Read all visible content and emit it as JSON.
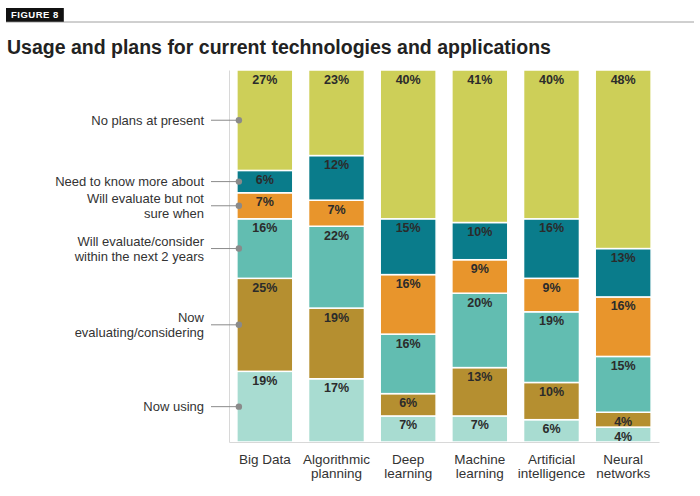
{
  "chart_data": {
    "type": "bar",
    "title": "Usage and plans for current technologies and applications",
    "annotations": [
      "FIGURE 8"
    ],
    "categories": [
      "Big Data",
      "Algorithmic planning",
      "Deep learning",
      "Machine learning",
      "Artificial intelligence",
      "Neural networks"
    ],
    "series": [
      {
        "name": "Now using",
        "color": "#a8dcd1",
        "values": [
          19,
          17,
          7,
          7,
          6,
          4
        ],
        "value_labels": [
          "19%",
          "17%",
          "7%",
          "7%",
          "6%",
          "4%"
        ]
      },
      {
        "name": "Now evaluating/considering",
        "color": "#b58f30",
        "values": [
          25,
          19,
          6,
          13,
          10,
          4
        ],
        "value_labels": [
          "25%",
          "19%",
          "6%",
          "13%",
          "10%",
          "4%"
        ]
      },
      {
        "name": "Will evaluate/consider within the next 2 years",
        "color": "#62bdb1",
        "values": [
          16,
          22,
          16,
          20,
          19,
          15
        ],
        "value_labels": [
          "16%",
          "22%",
          "16%",
          "20%",
          "19%",
          "15%"
        ]
      },
      {
        "name": "Will evaluate but not sure when",
        "color": "#e8952c",
        "values": [
          7,
          7,
          16,
          9,
          9,
          16
        ],
        "value_labels": [
          "7%",
          "7%",
          "16%",
          "9%",
          "9%",
          "16%"
        ]
      },
      {
        "name": "Need to know more about",
        "color": "#0a7c8b",
        "values": [
          6,
          12,
          15,
          10,
          16,
          13
        ],
        "value_labels": [
          "6%",
          "12%",
          "15%",
          "10%",
          "16%",
          "13%"
        ]
      },
      {
        "name": "No plans at present",
        "color": "#cdcf58",
        "values": [
          27,
          23,
          40,
          41,
          40,
          48
        ],
        "value_labels": [
          "27%",
          "23%",
          "40%",
          "41%",
          "40%",
          "48%"
        ]
      }
    ],
    "ylim": [
      0,
      100
    ],
    "yticks": [
      0,
      100
    ],
    "stacked": true,
    "data_labels": true,
    "tick_labels": "x",
    "legend": "left",
    "grid": false
  }
}
